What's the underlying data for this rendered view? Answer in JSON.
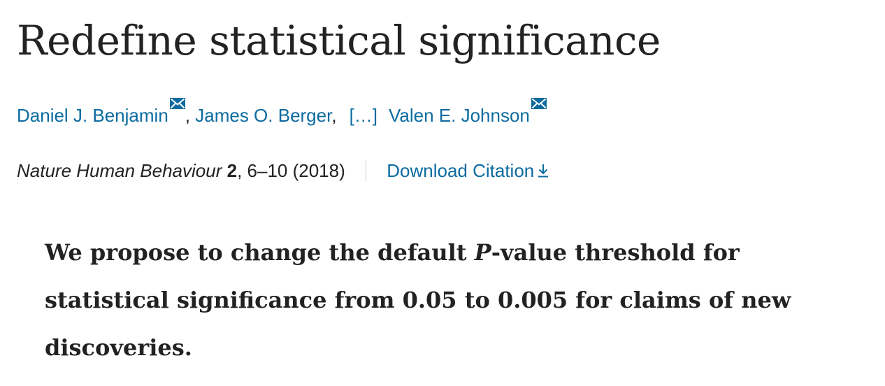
{
  "article": {
    "title": "Redefine statistical significance",
    "authors": [
      {
        "name": "Daniel J. Benjamin",
        "has_email": true
      },
      {
        "name": "James O. Berger",
        "has_email": false
      },
      {
        "name": "Valen E. Johnson",
        "has_email": true
      }
    ],
    "author_separator": ",",
    "ellipsis": "[…]",
    "journal": "Nature Human Behaviour",
    "volume": "2",
    "pages_year": ", 6–10 (2018)",
    "download_label": "Download Citation",
    "abstract": {
      "before": "We propose to change the default ",
      "italic": "P",
      "after": "-value threshold for statistical significance from 0.05 to 0.005 for claims of new discoveries."
    }
  },
  "icons": {
    "email": "mail-icon",
    "download": "download-icon"
  },
  "colors": {
    "link": "#0c6ba0",
    "text": "#222222",
    "divider": "#c9c9c9"
  }
}
